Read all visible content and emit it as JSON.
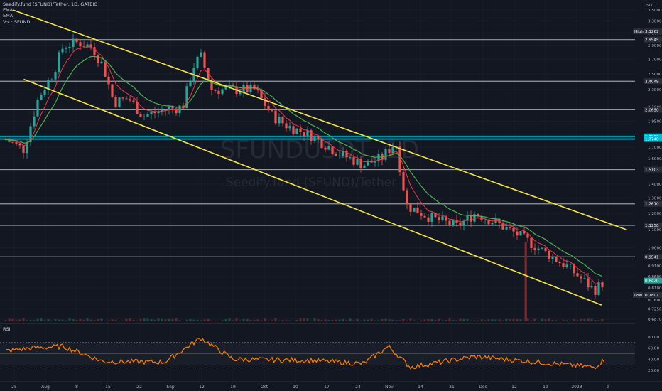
{
  "legend": {
    "title": "Seedify.fund (SFUND)/Tether, 1D, GATEIO",
    "ema1": "EMA",
    "ema2": "EMA",
    "vol": "Vol · SFUND"
  },
  "watermark": {
    "symbol": "SFUNDUSDT, 1D",
    "name": "Seedify.fund (SFUND)/Tether"
  },
  "price_axis": {
    "currency": "USDT",
    "ticks": [
      "3.5000",
      "3.3000",
      "3.1000",
      "2.9000",
      "2.7000",
      "2.5000",
      "2.3000",
      "2.1000",
      "1.9500",
      "1.8000",
      "1.7000",
      "1.6000",
      "1.5000",
      "1.4000",
      "1.3000",
      "1.2000",
      "1.1000",
      "1.0000",
      "0.9100",
      "0.8600",
      "0.8100",
      "0.7600",
      "0.7250",
      "0.6870"
    ],
    "tags": [
      {
        "label": "High",
        "value": "3.1262",
        "color": "#2a2e39"
      },
      {
        "value": "2.9945",
        "color": "#2a2e39"
      },
      {
        "value": "2.4049",
        "color": "#2a2e39"
      },
      {
        "value": "2.0690",
        "color": "#2a2e39"
      },
      {
        "value": "1.7990",
        "color": "#00bcd4"
      },
      {
        "value": "1.7740",
        "color": "#00bcd4"
      },
      {
        "value": "1.5103",
        "color": "#2a2e39"
      },
      {
        "value": "1.2610",
        "color": "#2a2e39"
      },
      {
        "value": "1.1258",
        "color": "#2a2e39"
      },
      {
        "value": "0.9541",
        "color": "#2a2e39"
      },
      {
        "value": "0.8420",
        "color": "#26a69a"
      },
      {
        "label": "Low",
        "value": "0.7801",
        "color": "#2a2e39"
      }
    ]
  },
  "rsi": {
    "label": "RSI",
    "ticks": [
      "80.00",
      "60.00",
      "40.00",
      "20.00"
    ]
  },
  "time_axis": [
    "25",
    "Aug",
    "8",
    "15",
    "22",
    "Sep",
    "12",
    "19",
    "Oct",
    "10",
    "17",
    "24",
    "Nov",
    "14",
    "21",
    "Dec",
    "12",
    "19",
    "2023",
    "9"
  ],
  "chart_data": {
    "type": "candlestick",
    "symbol": "SFUND/USDT",
    "timeframe": "1D",
    "exchange": "GATEIO",
    "price_range": [
      0.687,
      3.5
    ],
    "log_scale": true,
    "horizontal_levels": [
      2.9945,
      2.4049,
      2.069,
      1.799,
      1.774,
      1.5103,
      1.261,
      1.1258,
      0.9541
    ],
    "highlighted_levels": [
      1.799,
      1.774
    ],
    "session_high": 3.1262,
    "session_low": 0.7801,
    "last_price": 0.842,
    "trend_channel": {
      "upper": {
        "start": {
          "date": "2022-07-23",
          "price": 3.5
        },
        "end": {
          "date": "2023-01-09",
          "price": 1.1
        }
      },
      "lower": {
        "start": {
          "date": "2022-07-26",
          "price": 2.43
        },
        "end": {
          "date": "2023-01-02",
          "price": 0.74
        }
      }
    },
    "series": [
      {
        "name": "EMA",
        "color": "#f23645"
      },
      {
        "name": "EMA",
        "color": "#4caf50"
      },
      {
        "name": "Vol · SFUND"
      },
      {
        "name": "RSI",
        "color": "#f57c00"
      }
    ],
    "close_path": [
      {
        "date": "2022-07-21",
        "close": 1.77
      },
      {
        "date": "2022-07-26",
        "close": 1.68
      },
      {
        "date": "2022-07-30",
        "close": 2.2
      },
      {
        "date": "2022-08-03",
        "close": 2.5
      },
      {
        "date": "2022-08-06",
        "close": 2.9
      },
      {
        "date": "2022-08-10",
        "close": 2.95
      },
      {
        "date": "2022-08-14",
        "close": 2.88
      },
      {
        "date": "2022-08-17",
        "close": 2.6
      },
      {
        "date": "2022-08-20",
        "close": 2.15
      },
      {
        "date": "2022-08-24",
        "close": 2.2
      },
      {
        "date": "2022-08-28",
        "close": 2.0
      },
      {
        "date": "2022-09-03",
        "close": 2.07
      },
      {
        "date": "2022-09-08",
        "close": 2.1
      },
      {
        "date": "2022-09-11",
        "close": 2.6
      },
      {
        "date": "2022-09-13",
        "close": 2.75
      },
      {
        "date": "2022-09-16",
        "close": 2.3
      },
      {
        "date": "2022-09-22",
        "close": 2.3
      },
      {
        "date": "2022-09-28",
        "close": 2.3
      },
      {
        "date": "2022-10-03",
        "close": 2.0
      },
      {
        "date": "2022-10-07",
        "close": 1.9
      },
      {
        "date": "2022-10-14",
        "close": 1.8
      },
      {
        "date": "2022-10-21",
        "close": 1.65
      },
      {
        "date": "2022-10-28",
        "close": 1.55
      },
      {
        "date": "2022-11-02",
        "close": 1.6
      },
      {
        "date": "2022-11-06",
        "close": 1.75
      },
      {
        "date": "2022-11-09",
        "close": 1.25
      },
      {
        "date": "2022-11-16",
        "close": 1.17
      },
      {
        "date": "2022-11-23",
        "close": 1.12
      },
      {
        "date": "2022-11-28",
        "close": 1.2
      },
      {
        "date": "2022-12-03",
        "close": 1.15
      },
      {
        "date": "2022-12-10",
        "close": 1.07
      },
      {
        "date": "2022-12-17",
        "close": 0.98
      },
      {
        "date": "2022-12-24",
        "close": 0.9
      },
      {
        "date": "2022-12-31",
        "close": 0.8
      },
      {
        "date": "2023-01-03",
        "close": 0.842
      }
    ],
    "rsi_path": [
      {
        "date": "2022-07-21",
        "value": 55
      },
      {
        "date": "2022-07-28",
        "value": 60
      },
      {
        "date": "2022-08-06",
        "value": 63
      },
      {
        "date": "2022-08-17",
        "value": 36
      },
      {
        "date": "2022-09-03",
        "value": 35
      },
      {
        "date": "2022-09-13",
        "value": 78
      },
      {
        "date": "2022-09-22",
        "value": 40
      },
      {
        "date": "2022-10-14",
        "value": 38
      },
      {
        "date": "2022-10-28",
        "value": 32
      },
      {
        "date": "2022-11-04",
        "value": 63
      },
      {
        "date": "2022-11-10",
        "value": 26
      },
      {
        "date": "2022-11-28",
        "value": 45
      },
      {
        "date": "2022-12-15",
        "value": 35
      },
      {
        "date": "2022-12-31",
        "value": 26
      },
      {
        "date": "2023-01-03",
        "value": 40
      }
    ]
  }
}
